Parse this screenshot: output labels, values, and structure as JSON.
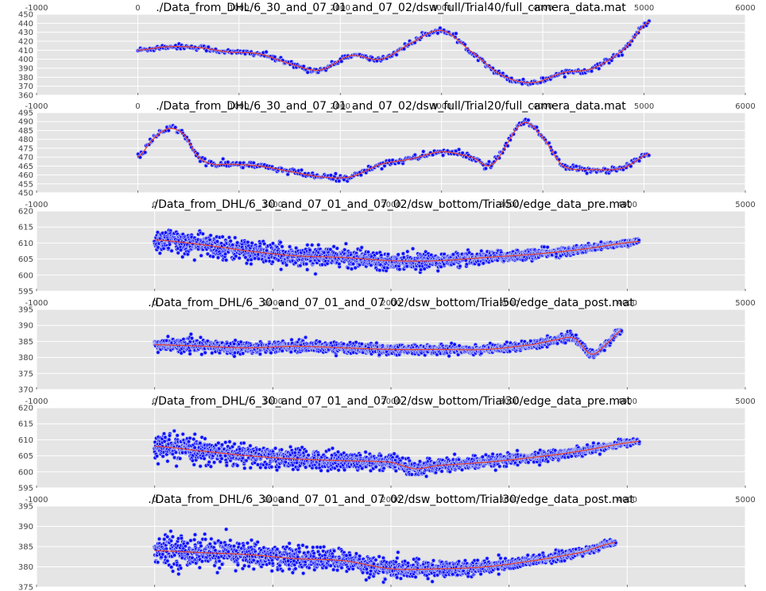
{
  "figure": {
    "background": "#ffffff",
    "axes_face": "#e5e5e5",
    "grid_color": "#ffffff",
    "point_color": "#0000ff",
    "point_edge": "#aab0f5",
    "fit_color": "#e8402a"
  },
  "chart_data": [
    {
      "type": "scatter",
      "title": "./Data_from_DHL/6_30_and_07_01_and_07_02/dsw_full/Trial40/full_camera_data.mat",
      "xlim": [
        -1000,
        6000
      ],
      "ylim": [
        360,
        450
      ],
      "xticks": [
        -1000,
        0,
        1000,
        2000,
        3000,
        4000,
        5000,
        6000
      ],
      "yticks": [
        360,
        370,
        380,
        390,
        400,
        410,
        420,
        430,
        440,
        450
      ],
      "xticklabels": [
        "-1000",
        "0",
        "1000",
        "2000",
        "3000",
        "4000",
        "5000",
        "6000"
      ],
      "yticklabels": [
        "360",
        "370",
        "380",
        "390",
        "400",
        "410",
        "420",
        "430",
        "440",
        "450"
      ],
      "x_range": [
        0,
        5050
      ],
      "grid": true,
      "style": "smooth",
      "series": [
        {
          "role": "points",
          "spread": 2.5,
          "count": 420
        },
        {
          "role": "fit",
          "x": [
            0,
            300,
            600,
            900,
            1200,
            1500,
            1800,
            2100,
            2400,
            2700,
            3000,
            3300,
            3600,
            3900,
            4200,
            4500,
            4800,
            5050
          ],
          "y": [
            410,
            414,
            413,
            408,
            406,
            395,
            388,
            404,
            400,
            418,
            432,
            408,
            382,
            374,
            385,
            390,
            411,
            442
          ]
        }
      ]
    },
    {
      "type": "scatter",
      "title": "./Data_from_DHL/6_30_and_07_01_and_07_02/dsw_full/Trial20/full_camera_data.mat",
      "xlim": [
        -1000,
        6000
      ],
      "ylim": [
        450,
        495
      ],
      "xticks": [
        -1000,
        0,
        1000,
        2000,
        3000,
        4000,
        5000,
        6000
      ],
      "yticks": [
        450,
        455,
        460,
        465,
        470,
        475,
        480,
        485,
        490,
        495
      ],
      "xticklabels": [
        "-1000",
        "0",
        "1000",
        "2000",
        "3000",
        "4000",
        "5000",
        "6000"
      ],
      "yticklabels": [
        "450",
        "455",
        "460",
        "465",
        "470",
        "475",
        "480",
        "485",
        "490",
        "495"
      ],
      "x_range": [
        0,
        5050
      ],
      "grid": true,
      "style": "smooth",
      "series": [
        {
          "role": "points",
          "spread": 1.6,
          "count": 420
        },
        {
          "role": "fit",
          "x": [
            0,
            150,
            300,
            450,
            600,
            750,
            900,
            1200,
            1500,
            1800,
            2100,
            2400,
            2700,
            3000,
            3300,
            3500,
            3800,
            4000,
            4200,
            4500,
            4800,
            5050
          ],
          "y": [
            470,
            480,
            486,
            483,
            470,
            466,
            466,
            465,
            462,
            459,
            459,
            466,
            469,
            473,
            470,
            466,
            489,
            481,
            465,
            463,
            464,
            472
          ]
        }
      ]
    },
    {
      "type": "scatter",
      "title": "./Data_from_DHL/6_30_and_07_01_and_07_02/dsw_bottom/Trial50/edge_data_pre.mat",
      "xlim": [
        -1000,
        5000
      ],
      "ylim": [
        595,
        620
      ],
      "xticks": [
        -1000,
        0,
        1000,
        2000,
        3000,
        4000,
        5000
      ],
      "yticks": [
        595,
        600,
        605,
        610,
        615,
        620
      ],
      "xticklabels": [
        "-1000",
        "0",
        "1000",
        "2000",
        "3000",
        "4000",
        "5000"
      ],
      "yticklabels": [
        "595",
        "600",
        "605",
        "610",
        "615",
        "620"
      ],
      "x_range": [
        0,
        4100
      ],
      "grid": true,
      "style": "noisy",
      "series": [
        {
          "role": "points",
          "spread_start": 3.5,
          "spread_end": 0.8,
          "count": 900
        },
        {
          "role": "fit",
          "x": [
            0,
            400,
            800,
            1200,
            1600,
            2000,
            2400,
            2800,
            3200,
            3600,
            4100
          ],
          "y": [
            611,
            609.5,
            607.5,
            606,
            605.5,
            604.5,
            604.5,
            605.5,
            606.5,
            608,
            610.5
          ]
        }
      ]
    },
    {
      "type": "scatter",
      "title": "./Data_from_DHL/6_30_and_07_01_and_07_02/dsw_bottom/Trial50/edge_data_post.mat",
      "xlim": [
        -1000,
        5000
      ],
      "ylim": [
        370,
        395
      ],
      "xticks": [
        -1000,
        0,
        1000,
        2000,
        3000,
        4000,
        5000
      ],
      "yticks": [
        370,
        375,
        380,
        385,
        390,
        395
      ],
      "xticklabels": [
        "-1000",
        "0",
        "1000",
        "2000",
        "3000",
        "4000",
        "5000"
      ],
      "yticklabels": [
        "370",
        "375",
        "380",
        "385",
        "390",
        "395"
      ],
      "x_range": [
        0,
        3950
      ],
      "grid": true,
      "style": "noisy",
      "series": [
        {
          "role": "points",
          "spread_start": 1.8,
          "spread_end": 1.0,
          "count": 800
        },
        {
          "role": "fit",
          "x": [
            0,
            400,
            800,
            1200,
            1600,
            2000,
            2400,
            2800,
            3200,
            3400,
            3550,
            3700,
            3850,
            3950
          ],
          "y": [
            384,
            383.5,
            383,
            383.5,
            383,
            382.5,
            382.5,
            382.5,
            384,
            385.5,
            386,
            381,
            385,
            388.5
          ]
        }
      ]
    },
    {
      "type": "scatter",
      "title": "./Data_from_DHL/6_30_and_07_01_and_07_02/dsw_bottom/Trial30/edge_data_pre.mat",
      "xlim": [
        -1000,
        5000
      ],
      "ylim": [
        595,
        620
      ],
      "xticks": [
        -1000,
        0,
        1000,
        2000,
        3000,
        4000,
        5000
      ],
      "yticks": [
        595,
        600,
        605,
        610,
        615,
        620
      ],
      "xticklabels": [
        "-1000",
        "0",
        "1000",
        "2000",
        "3000",
        "4000",
        "5000"
      ],
      "yticklabels": [
        "595",
        "600",
        "605",
        "610",
        "615",
        "620"
      ],
      "x_range": [
        0,
        4100
      ],
      "grid": true,
      "style": "noisy",
      "series": [
        {
          "role": "points",
          "spread_start": 3.5,
          "spread_end": 0.9,
          "count": 900
        },
        {
          "role": "fit",
          "x": [
            0,
            400,
            800,
            1200,
            1600,
            2000,
            2200,
            2400,
            2800,
            3200,
            3600,
            4100
          ],
          "y": [
            608,
            606.5,
            605,
            604,
            603.5,
            603,
            601,
            602,
            603,
            604.5,
            606.5,
            609.5
          ]
        }
      ]
    },
    {
      "type": "scatter",
      "title": "./Data_from_DHL/6_30_and_07_01_and_07_02/dsw_bottom/Trial30/edge_data_post.mat",
      "xlim": [
        -1000,
        5000
      ],
      "ylim": [
        375,
        395
      ],
      "xticks": [
        -1000,
        0,
        1000,
        2000,
        3000,
        4000,
        5000
      ],
      "yticks": [
        375,
        380,
        385,
        390,
        395
      ],
      "xticklabels": [
        "-1000",
        "0",
        "1000",
        "2000",
        "3000",
        "4000",
        "5000"
      ],
      "yticklabels": [
        "375",
        "380",
        "385",
        "390",
        "395"
      ],
      "x_range": [
        0,
        3900
      ],
      "grid": true,
      "style": "noisy",
      "series": [
        {
          "role": "points",
          "spread_start": 3.5,
          "spread_end": 0.7,
          "count": 850
        },
        {
          "role": "fit",
          "x": [
            0,
            400,
            800,
            1200,
            1600,
            2000,
            2400,
            2800,
            3200,
            3600,
            3900
          ],
          "y": [
            384,
            383.5,
            383,
            382,
            381.5,
            379.5,
            379.5,
            380,
            381.5,
            383.5,
            386
          ]
        }
      ]
    }
  ]
}
